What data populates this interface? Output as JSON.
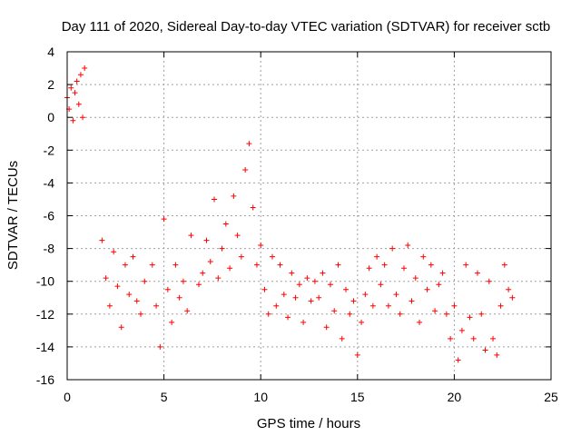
{
  "chart_data": {
    "type": "scatter",
    "title": "Day 111 of 2020, Sidereal Day-to-day VTEC variation (SDTVAR) for receiver sctb",
    "xlabel": "GPS time / hours",
    "ylabel": "SDTVAR / TECUs",
    "xlim": [
      0,
      25
    ],
    "ylim": [
      -16,
      4
    ],
    "xticks": [
      0,
      5,
      10,
      15,
      20,
      25
    ],
    "yticks": [
      4,
      2,
      0,
      -2,
      -4,
      -6,
      -8,
      -10,
      -12,
      -14,
      -16
    ],
    "grid": true,
    "marker": "plus",
    "color": "#ff0000",
    "series": [
      {
        "name": "SDTVAR",
        "segments": [
          {
            "x": [
              0.0,
              0.1,
              0.2,
              0.3,
              0.4,
              0.5,
              0.6,
              0.7,
              0.8,
              0.9
            ],
            "y": [
              1.2,
              0.5,
              1.8,
              -0.2,
              1.5,
              2.2,
              0.8,
              2.6,
              0.0,
              3.0
            ]
          },
          {
            "x": [
              1.8,
              2.0,
              2.2,
              2.4,
              2.6,
              2.8,
              3.0,
              3.2,
              3.4,
              3.6,
              3.8,
              4.0
            ],
            "y": [
              -7.5,
              -9.8,
              -11.5,
              -8.2,
              -10.3,
              -12.8,
              -9.0,
              -10.8,
              -8.5,
              -11.2,
              -12.0,
              -10.0
            ]
          },
          {
            "x": [
              4.4,
              4.6,
              4.8,
              5.0,
              5.2,
              5.4,
              5.6,
              5.8,
              6.0,
              6.2,
              6.4
            ],
            "y": [
              -9.0,
              -11.5,
              -14.0,
              -6.2,
              -10.5,
              -12.5,
              -9.0,
              -11.0,
              -10.0,
              -11.8,
              -7.2
            ]
          },
          {
            "x": [
              6.8,
              7.0,
              7.2,
              7.4,
              7.6,
              7.8,
              8.0,
              8.2,
              8.4,
              8.6,
              8.8,
              9.0,
              9.2,
              9.4,
              9.6,
              9.8
            ],
            "y": [
              -10.2,
              -9.5,
              -7.5,
              -8.8,
              -5.0,
              -9.8,
              -8.0,
              -6.5,
              -9.2,
              -4.8,
              -7.2,
              -8.5,
              -3.2,
              -1.6,
              -5.5,
              -9.0
            ]
          },
          {
            "x": [
              10.0,
              10.2,
              10.4,
              10.6,
              10.8,
              11.0,
              11.2,
              11.4,
              11.6,
              11.8,
              12.0,
              12.2,
              12.4,
              12.6,
              12.8
            ],
            "y": [
              -7.8,
              -10.5,
              -12.0,
              -8.5,
              -11.5,
              -9.0,
              -10.8,
              -12.2,
              -9.5,
              -11.0,
              -10.2,
              -12.5,
              -9.8,
              -11.2,
              -10.0
            ]
          },
          {
            "x": [
              13.0,
              13.2,
              13.4,
              13.6,
              13.8,
              14.0,
              14.2,
              14.4,
              14.6,
              14.8,
              15.0,
              15.2,
              15.4,
              15.6,
              15.8
            ],
            "y": [
              -11.0,
              -9.5,
              -12.8,
              -10.2,
              -11.8,
              -9.0,
              -13.5,
              -10.5,
              -12.0,
              -11.2,
              -14.5,
              -12.5,
              -10.8,
              -9.2,
              -11.5
            ]
          },
          {
            "x": [
              16.0,
              16.2,
              16.4,
              16.6,
              16.8,
              17.0,
              17.2,
              17.4,
              17.6,
              17.8,
              18.0,
              18.2,
              18.4,
              18.6,
              18.8,
              19.0,
              19.2,
              19.4,
              19.6,
              19.8
            ],
            "y": [
              -8.5,
              -10.2,
              -9.0,
              -11.5,
              -8.0,
              -10.8,
              -12.0,
              -9.2,
              -7.8,
              -11.2,
              -9.8,
              -12.5,
              -8.5,
              -10.5,
              -9.0,
              -11.8,
              -10.2,
              -9.5,
              -12.0,
              -13.5
            ]
          },
          {
            "x": [
              20.0,
              20.2,
              20.4,
              20.6,
              20.8,
              21.0,
              21.2,
              21.4,
              21.6,
              21.8,
              22.0,
              22.2,
              22.4,
              22.6,
              22.8,
              23.0
            ],
            "y": [
              -11.5,
              -14.8,
              -13.0,
              -9.0,
              -12.2,
              -13.5,
              -9.5,
              -12.0,
              -14.2,
              -10.0,
              -13.5,
              -14.5,
              -11.5,
              -9.0,
              -10.5,
              -11.0
            ]
          }
        ]
      }
    ]
  }
}
